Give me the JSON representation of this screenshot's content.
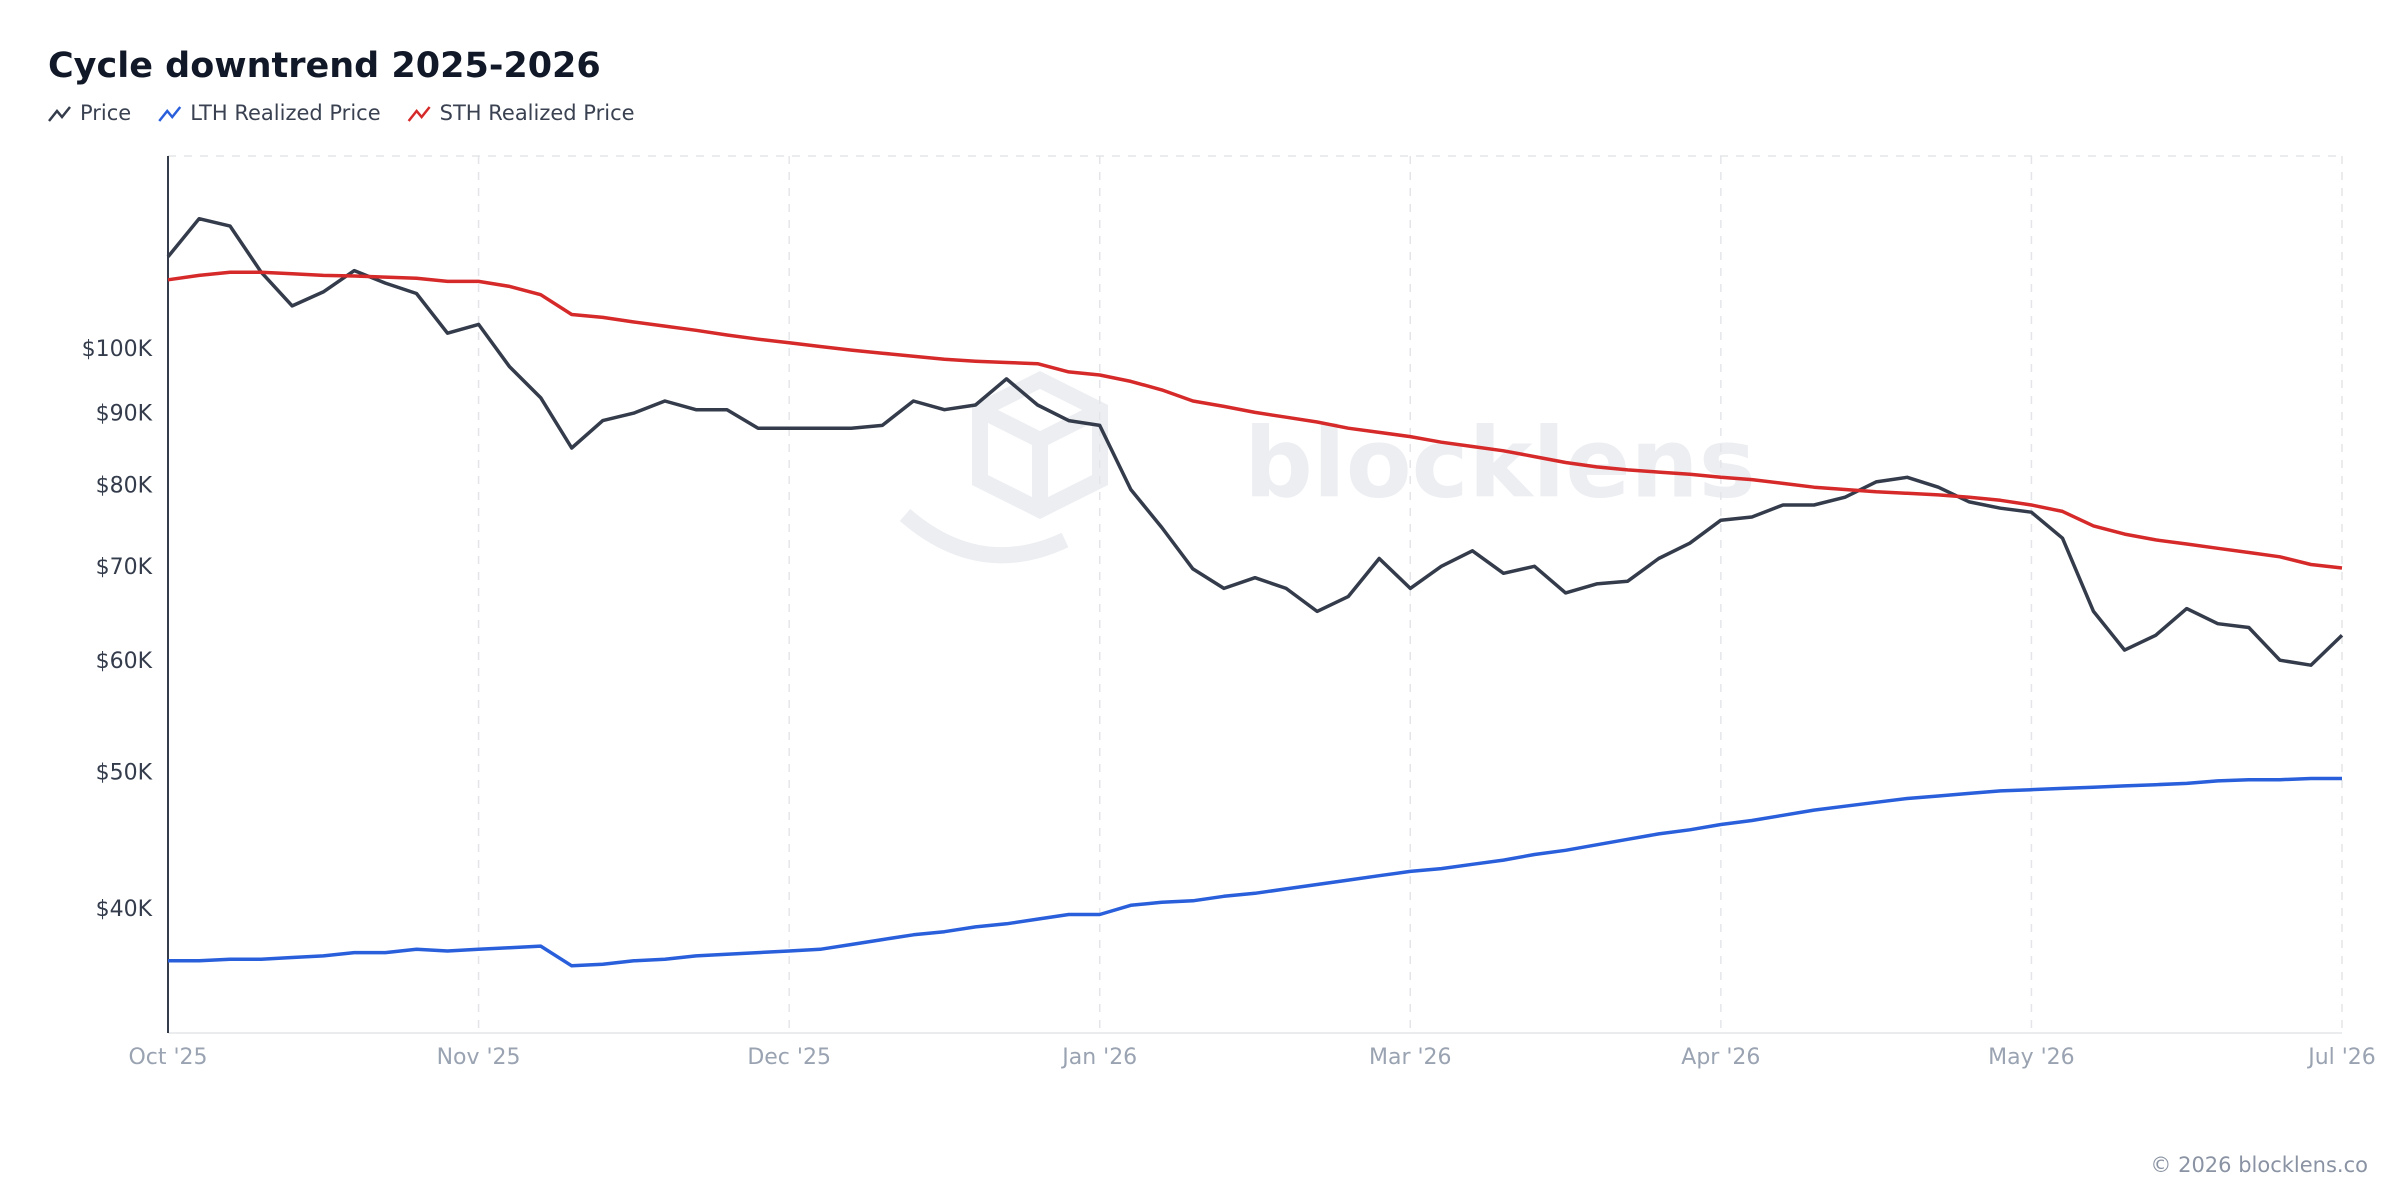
{
  "chart_data": {
    "type": "line",
    "title": "Cycle downtrend 2025-2026",
    "footer": "© 2026 blocklens.co",
    "watermark": "blocklens",
    "log_scale": true,
    "grid": true,
    "x": [
      0,
      1,
      2,
      3,
      4,
      5,
      6,
      7,
      8,
      9,
      10,
      11,
      12,
      13,
      14,
      15,
      16,
      17,
      18,
      19,
      20,
      21,
      22,
      23,
      24,
      25,
      26,
      27,
      28,
      29,
      30,
      31,
      32,
      33,
      34,
      35,
      36,
      37,
      38,
      39,
      40,
      41,
      42,
      43,
      44,
      45,
      46,
      47,
      48,
      49,
      50,
      51,
      52,
      53,
      54,
      55,
      56,
      57,
      58,
      59,
      60,
      61,
      62,
      63,
      64,
      65,
      66,
      67,
      68,
      69,
      70
    ],
    "xlim": [
      0,
      70
    ],
    "xticks": [
      {
        "value": 0,
        "label": "Oct '25"
      },
      {
        "value": 10,
        "label": "Nov '25"
      },
      {
        "value": 20,
        "label": "Dec '25"
      },
      {
        "value": 30,
        "label": "Jan '26"
      },
      {
        "value": 40,
        "label": "Mar '26"
      },
      {
        "value": 50,
        "label": "Apr '26"
      },
      {
        "value": 60,
        "label": "May '26"
      },
      {
        "value": 70,
        "label": "Jul '26"
      }
    ],
    "ylim": [
      32700,
      137400
    ],
    "yticks": [
      {
        "value": 40000,
        "label": "$40K"
      },
      {
        "value": 50000,
        "label": "$50K"
      },
      {
        "value": 60000,
        "label": "$60K"
      },
      {
        "value": 70000,
        "label": "$70K"
      },
      {
        "value": 80000,
        "label": "$80K"
      },
      {
        "value": 90000,
        "label": "$90K"
      },
      {
        "value": 100000,
        "label": "$100K"
      }
    ],
    "series": [
      {
        "name": "Price",
        "color": "#343c4c",
        "values": [
          116500,
          124000,
          122500,
          113600,
          107500,
          110000,
          113900,
          111600,
          109700,
          102800,
          104300,
          97300,
          92500,
          85200,
          89100,
          90200,
          92000,
          90700,
          90700,
          88000,
          88000,
          88000,
          88000,
          88400,
          92000,
          90700,
          91400,
          95400,
          91400,
          89100,
          88400,
          79600,
          74800,
          69900,
          67700,
          68900,
          67700,
          65200,
          66800,
          71100,
          67700,
          70200,
          72000,
          69400,
          70200,
          67200,
          68200,
          68500,
          71100,
          72900,
          75700,
          76100,
          77600,
          77600,
          78600,
          80600,
          81200,
          79900,
          78000,
          77200,
          76700,
          73500,
          65200,
          61200,
          62700,
          65500,
          63900,
          63500,
          60200,
          59700,
          62700
        ]
      },
      {
        "name": "LTH Realized Price",
        "color": "#2a5fdc",
        "values": [
          36800,
          36800,
          36900,
          36900,
          37000,
          37100,
          37300,
          37300,
          37500,
          37400,
          37500,
          37600,
          37700,
          36500,
          36600,
          36800,
          36900,
          37100,
          37200,
          37300,
          37400,
          37500,
          37800,
          38100,
          38400,
          38600,
          38900,
          39100,
          39400,
          39700,
          39700,
          40300,
          40500,
          40600,
          40900,
          41100,
          41400,
          41700,
          42000,
          42300,
          42600,
          42800,
          43100,
          43400,
          43800,
          44100,
          44500,
          44900,
          45300,
          45600,
          46000,
          46300,
          46700,
          47100,
          47400,
          47700,
          48000,
          48200,
          48400,
          48600,
          48700,
          48800,
          48900,
          49000,
          49100,
          49200,
          49400,
          49500,
          49500,
          49600,
          49600
        ]
      },
      {
        "name": "STH Realized Price",
        "color": "#d62a2a",
        "values": [
          112200,
          113000,
          113600,
          113600,
          113300,
          113000,
          112900,
          112700,
          112500,
          111900,
          111900,
          111000,
          109500,
          106000,
          105500,
          104700,
          104000,
          103300,
          102500,
          101800,
          101200,
          100600,
          100000,
          99500,
          99000,
          98500,
          98200,
          98000,
          97800,
          96500,
          96000,
          95000,
          93700,
          92000,
          91200,
          90300,
          89600,
          88900,
          88000,
          87400,
          86800,
          86000,
          85400,
          84800,
          84000,
          83200,
          82600,
          82200,
          81900,
          81600,
          81200,
          80900,
          80400,
          79900,
          79600,
          79300,
          79100,
          78900,
          78600,
          78200,
          77600,
          76800,
          75000,
          74000,
          73300,
          72800,
          72300,
          71800,
          71300,
          70400,
          70000
        ]
      }
    ]
  }
}
